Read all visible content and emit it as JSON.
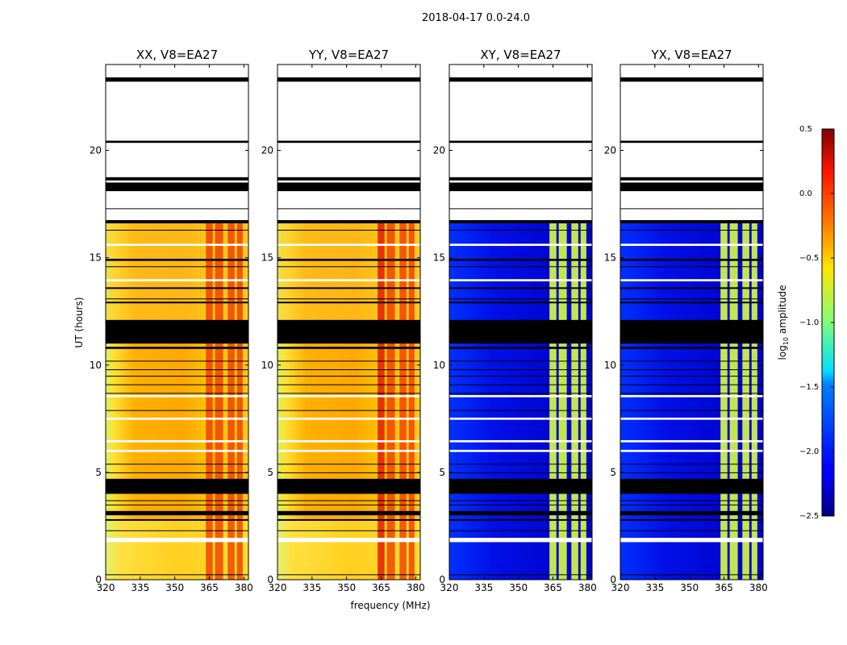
{
  "chart_data": {
    "type": "heatmap",
    "title": "2018-04-17 0.0-24.0",
    "xlabel": "frequency (MHz)",
    "ylabel": "UT (hours)",
    "xlim": [
      320,
      382
    ],
    "ylim": [
      0,
      24
    ],
    "xticks": [
      320,
      335,
      350,
      365,
      380
    ],
    "yticks": [
      0,
      5,
      10,
      15,
      20
    ],
    "panels": [
      {
        "title": "XX, V8=EA27",
        "kind": "parallel"
      },
      {
        "title": "YY, V8=EA27",
        "kind": "parallel"
      },
      {
        "title": "XY, V8=EA27",
        "kind": "cross"
      },
      {
        "title": "YX, V8=EA27",
        "kind": "cross"
      }
    ],
    "colorbar": {
      "label": "log10 amplitude",
      "label_main": "log",
      "label_sub": "10",
      "label_rest": " amplitude",
      "range": [
        -2.5,
        0.5
      ],
      "ticks": [
        0.5,
        0.0,
        -0.5,
        -1.0,
        -1.5,
        -2.0,
        -2.5
      ],
      "tick_labels": [
        "0.5",
        "0.0",
        "−0.5",
        "−1.0",
        "−1.5",
        "−2.0",
        "−2.5"
      ]
    },
    "flagged_intervals_hours": [
      [
        23.2,
        23.4
      ],
      [
        20.35,
        20.45
      ],
      [
        18.6,
        18.75
      ],
      [
        18.1,
        18.5
      ],
      [
        16.6,
        16.75
      ],
      [
        14.85,
        14.95
      ],
      [
        13.55,
        13.62
      ],
      [
        12.9,
        12.95
      ],
      [
        11.0,
        12.1
      ],
      [
        10.75,
        10.85
      ],
      [
        4.0,
        4.7
      ],
      [
        3.0,
        3.2
      ],
      [
        2.75,
        2.82
      ]
    ],
    "gap_intervals_hours": [
      [
        20.45,
        23.2
      ],
      [
        18.75,
        20.35
      ],
      [
        16.75,
        18.1
      ],
      [
        1.75,
        1.95
      ],
      [
        15.55,
        15.65
      ],
      [
        13.9,
        14.0
      ],
      [
        7.45,
        7.55
      ],
      [
        6.4,
        6.5
      ],
      [
        5.95,
        6.05
      ],
      [
        8.5,
        8.6
      ]
    ],
    "rfi_channel_bands_mhz": [
      [
        363.5,
        366.5
      ],
      [
        367.5,
        371
      ],
      [
        373,
        376
      ],
      [
        377,
        379.5
      ]
    ]
  }
}
